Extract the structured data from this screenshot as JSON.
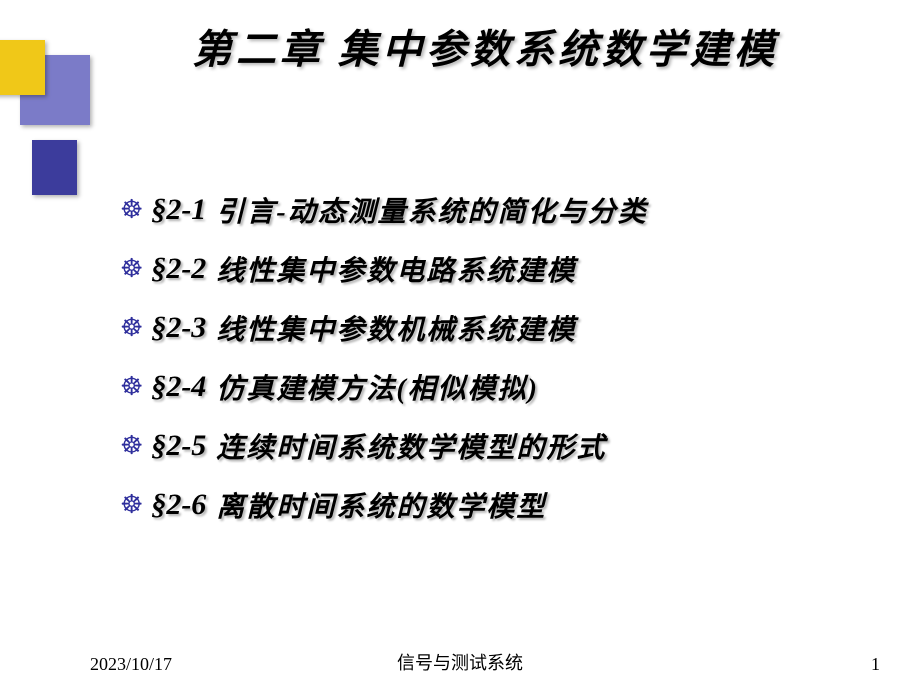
{
  "title": "第二章  集中参数系统数学建模",
  "sections": [
    {
      "num": "§2-1",
      "text": "引言-动态测量系统的简化与分类"
    },
    {
      "num": "§2-2",
      "text": "线性集中参数电路系统建模"
    },
    {
      "num": "§2-3",
      "text": "线性集中参数机械系统建模"
    },
    {
      "num": "§2-4",
      "text": "仿真建模方法(相似模拟)"
    },
    {
      "num": "§2-5",
      "text": "连续时间系统数学模型的形式"
    },
    {
      "num": "§2-6",
      "text": "离散时间系统的数学模型"
    }
  ],
  "footer": {
    "date": "2023/10/17",
    "center": "信号与测试系统",
    "page": "1"
  },
  "colors": {
    "bullet": "#2e2e9c",
    "square_purple": "#7b7bc8",
    "square_yellow": "#f0c818",
    "square_blue": "#3c3c9c",
    "background": "#ffffff",
    "text": "#000000"
  },
  "fonts": {
    "title_size": 40,
    "section_num_size": 30,
    "section_text_size": 28,
    "footer_size": 18
  }
}
